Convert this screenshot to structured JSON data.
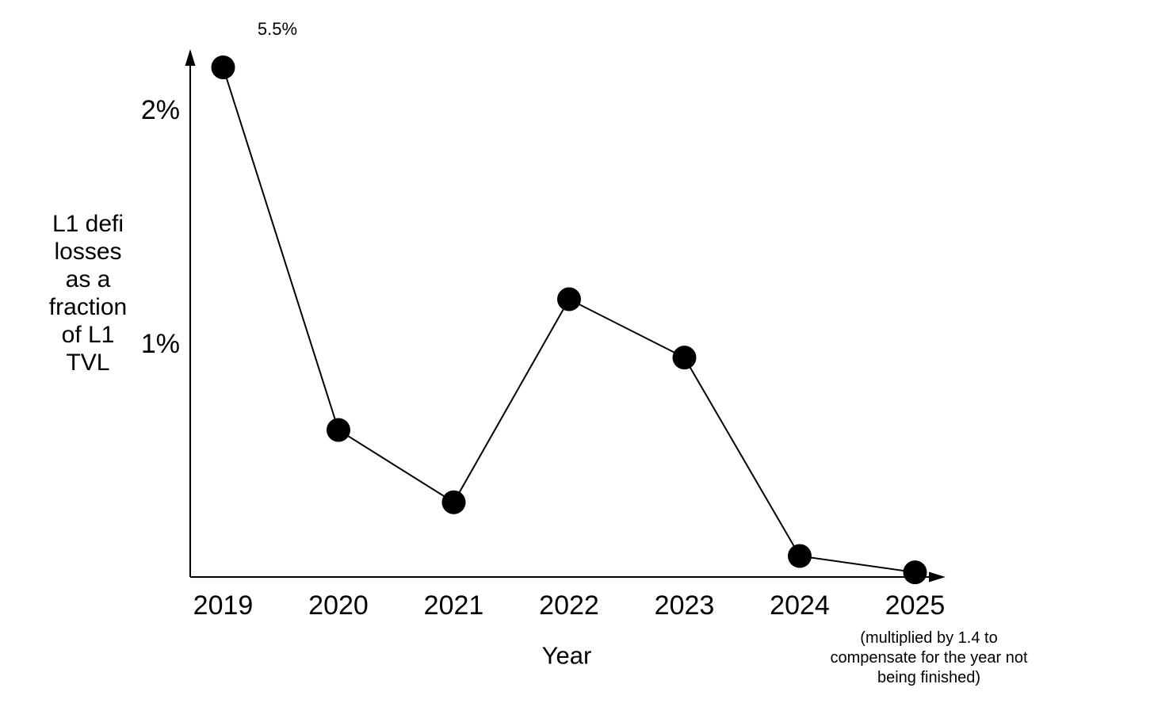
{
  "chart_data": {
    "type": "line",
    "title": "",
    "xlabel": "Year",
    "ylabel": "L1 defi losses as a fraction of L1 TVL",
    "ylabel_lines": [
      "L1 defi",
      "losses",
      "as a",
      "fraction",
      "of L1",
      "TVL"
    ],
    "categories": [
      "2019",
      "2020",
      "2021",
      "2022",
      "2023",
      "2024",
      "2025"
    ],
    "series": [
      {
        "name": "L1 defi losses as a fraction of L1 TVL",
        "values_percent": [
          5.5,
          0.63,
          0.32,
          1.19,
          0.94,
          0.09,
          0.02
        ]
      }
    ],
    "y_ticks": [
      {
        "label": "2%",
        "value": 2
      },
      {
        "label": "1%",
        "value": 1
      }
    ],
    "ylim": [
      0,
      2.25
    ],
    "grid": false,
    "legend": "none",
    "marker": "filled-circle",
    "annotations": [
      {
        "target_category": "2019",
        "label": "5.5%",
        "clipped_at_axis_top": true
      }
    ],
    "footnote": "(multiplied by 1.4 to compensate for the year not being finished)",
    "footnote_lines": [
      "(multiplied by 1.4 to",
      "compensate for the year not",
      "being finished)"
    ],
    "colors": {
      "line": "#000000",
      "marker": "#000000",
      "axis": "#000000",
      "text": "#000000",
      "background": "#ffffff"
    }
  }
}
